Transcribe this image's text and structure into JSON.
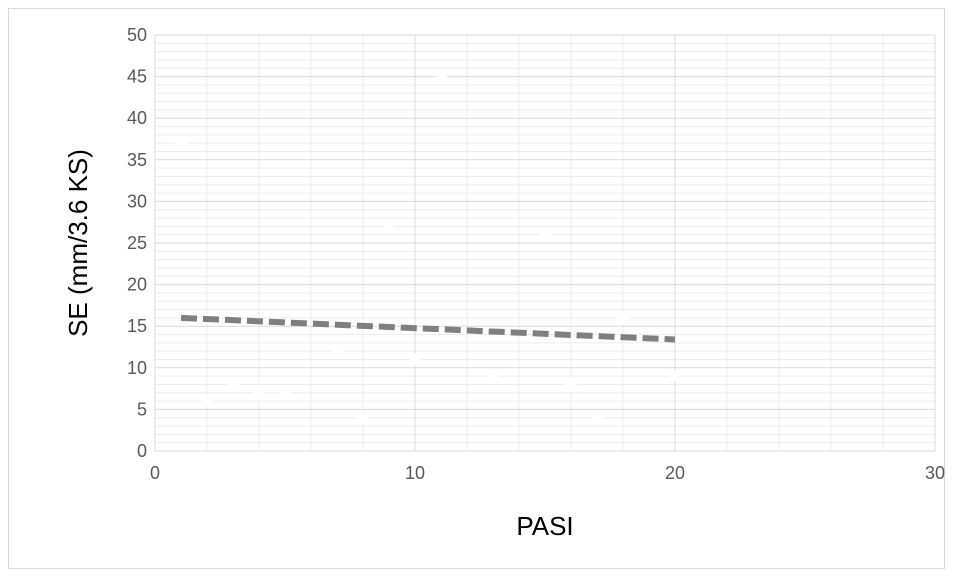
{
  "chart_data": {
    "type": "scatter",
    "title": "",
    "xlabel": "PASI",
    "ylabel": "SE (mm/3.6 KS)",
    "xlim": [
      0,
      30
    ],
    "ylim": [
      0,
      50
    ],
    "x_ticks": [
      0,
      10,
      20,
      30
    ],
    "y_ticks": [
      0,
      5,
      10,
      15,
      20,
      25,
      30,
      35,
      40,
      45,
      50
    ],
    "grid": true,
    "legend": "none",
    "series": [
      {
        "points": [
          [
            1,
            37
          ],
          [
            2,
            6
          ],
          [
            3,
            8
          ],
          [
            4,
            7
          ],
          [
            5,
            7
          ],
          [
            7,
            12
          ],
          [
            8,
            4
          ],
          [
            9,
            27
          ],
          [
            10,
            11
          ],
          [
            11,
            45
          ],
          [
            13,
            9
          ],
          [
            15,
            26
          ],
          [
            16,
            8
          ],
          [
            17,
            4
          ],
          [
            18,
            16
          ],
          [
            20,
            9
          ]
        ],
        "marker_color": "#ffffff"
      }
    ],
    "trendline": {
      "type": "linear",
      "points": [
        [
          1,
          16
        ],
        [
          20,
          13.4
        ]
      ],
      "style": "dashed",
      "color": "#7f7f7f"
    }
  }
}
